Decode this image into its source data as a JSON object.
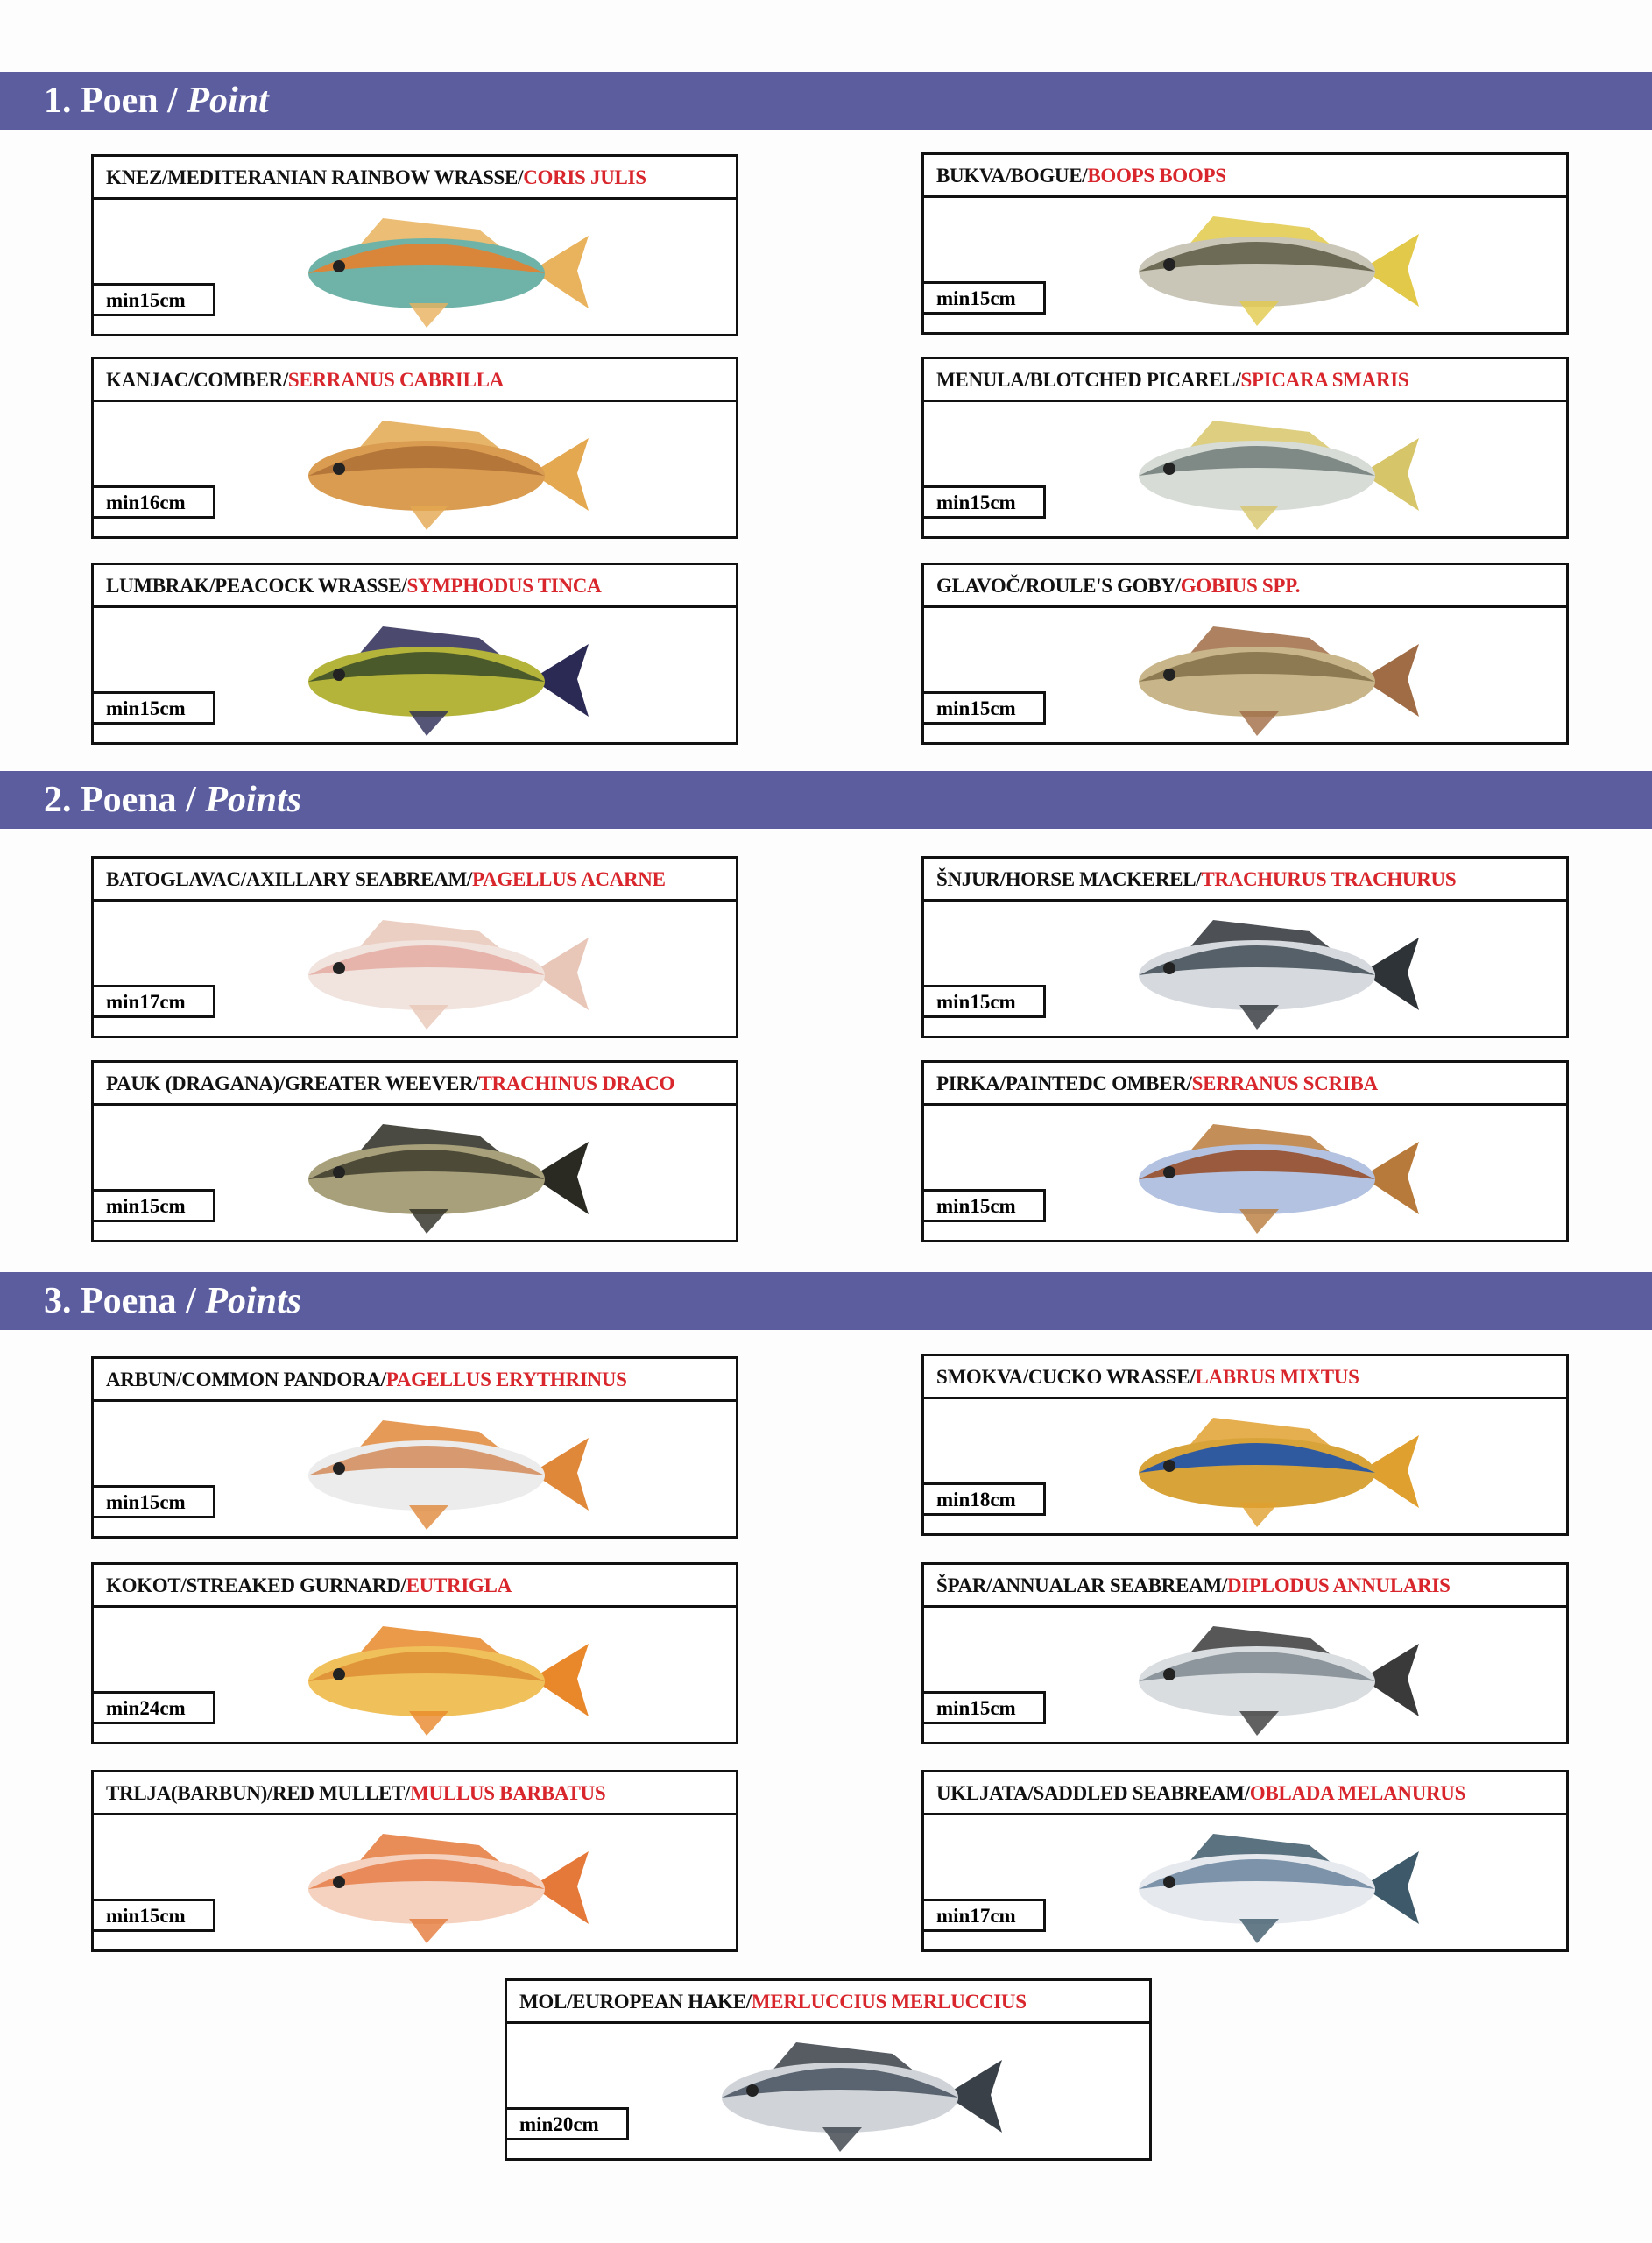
{
  "sections": [
    {
      "number": "1.",
      "label": "Poen",
      "label_en": "Point"
    },
    {
      "number": "2.",
      "label": "Poena",
      "label_en": "Points"
    },
    {
      "number": "3.",
      "label": "Poena",
      "label_en": "Points"
    }
  ],
  "fish": [
    {
      "name": "KNEZ/MEDITERANIAN RAINBOW WRASSE/",
      "scientific": "CORIS JULIS",
      "min_size": "min15cm",
      "section": 1,
      "colors": [
        "#d9863a",
        "#6fb3a8",
        "#e9b25c"
      ]
    },
    {
      "name": "BUKVA/BOGUE/",
      "scientific": "BOOPS BOOPS",
      "min_size": "min15cm",
      "section": 1,
      "colors": [
        "#6d6a55",
        "#c9c6b8",
        "#e2c94a"
      ]
    },
    {
      "name": "KANJAC/COMBER/",
      "scientific": "SERRANUS CABRILLA",
      "min_size": "min16cm",
      "section": 1,
      "colors": [
        "#b5763a",
        "#d99c50",
        "#e3a850"
      ]
    },
    {
      "name": "MENULA/BLOTCHED PICAREL/",
      "scientific": "SPICARA SMARIS",
      "min_size": "min15cm",
      "section": 1,
      "colors": [
        "#7f8a86",
        "#d7dcd6",
        "#d7c56a"
      ]
    },
    {
      "name": "LUMBRAK/PEACOCK WRASSE/",
      "scientific": "SYMPHODUS TINCA",
      "min_size": "min15cm",
      "section": 1,
      "colors": [
        "#4a5a2a",
        "#b4b33a",
        "#2b2a55"
      ]
    },
    {
      "name": "GLAVOČ/ROULE'S GOBY/",
      "scientific": "GOBIUS SPP.",
      "min_size": "min15cm",
      "section": 1,
      "colors": [
        "#8d7a52",
        "#c8b68a",
        "#a06c45"
      ]
    },
    {
      "name": "BATOGLAVAC/AXILLARY SEABREAM/",
      "scientific": "PAGELLUS ACARNE",
      "min_size": "min17cm",
      "section": 2,
      "colors": [
        "#e6b4ab",
        "#f1e3dd",
        "#e8c7b8"
      ]
    },
    {
      "name": "ŠNJUR/HORSE MACKEREL/",
      "scientific": "TRACHURUS TRACHURUS",
      "min_size": "min15cm",
      "section": 2,
      "colors": [
        "#556068",
        "#d6dade",
        "#2e3338"
      ]
    },
    {
      "name": "PAUK (DRAGANA)/GREATER WEEVER/",
      "scientific": "TRACHINUS DRACO",
      "min_size": "min15cm",
      "section": 2,
      "colors": [
        "#4e4a38",
        "#a7a07a",
        "#2a2a22"
      ]
    },
    {
      "name": "PIRKA/PAINTEDC OMBER/",
      "scientific": "SERRANUS SCRIBA",
      "min_size": "min15cm",
      "section": 2,
      "colors": [
        "#9a5a3e",
        "#b3c2e0",
        "#b87a3a"
      ]
    },
    {
      "name": "ARBUN/COMMON PANDORA/",
      "scientific": "PAGELLUS ERYTHRINUS",
      "min_size": "min15cm",
      "section": 3,
      "colors": [
        "#d79a70",
        "#ececec",
        "#e0883a"
      ]
    },
    {
      "name": "SMOKVA/CUCKO WRASSE/",
      "scientific": "LABRUS MIXTUS",
      "min_size": "min18cm",
      "section": 3,
      "colors": [
        "#2f5aa0",
        "#d8a43a",
        "#e0a030"
      ]
    },
    {
      "name": "KOKOT/STREAKED GURNARD/",
      "scientific": "EUTRIGLA",
      "min_size": "min24cm",
      "section": 3,
      "colors": [
        "#e0953a",
        "#f0c05a",
        "#e8882a"
      ]
    },
    {
      "name": "ŠPAR/ANNUALAR SEABREAM/",
      "scientific": "DIPLODUS ANNULARIS",
      "min_size": "min15cm",
      "section": 3,
      "colors": [
        "#8c969c",
        "#d9dde0",
        "#3a3a3a"
      ]
    },
    {
      "name": "TRLJA(BARBUN)/RED MULLET/",
      "scientific": "MULLUS BARBATUS",
      "min_size": "min15cm",
      "section": 3,
      "colors": [
        "#e88a5a",
        "#f4d2bf",
        "#e4793a"
      ]
    },
    {
      "name": "UKLJATA/SADDLED SEABREAM/",
      "scientific": "OBLADA MELANURUS",
      "min_size": "min17cm",
      "section": 3,
      "colors": [
        "#7c93aa",
        "#e6e9ee",
        "#3e5a6a"
      ]
    },
    {
      "name": "MOL/EUROPEAN HAKE/",
      "scientific": "MERLUCCIUS MERLUCCIUS",
      "min_size": "min20cm",
      "section": 3,
      "colors": [
        "#5a6470",
        "#d0d4d8",
        "#3a4048"
      ]
    }
  ]
}
